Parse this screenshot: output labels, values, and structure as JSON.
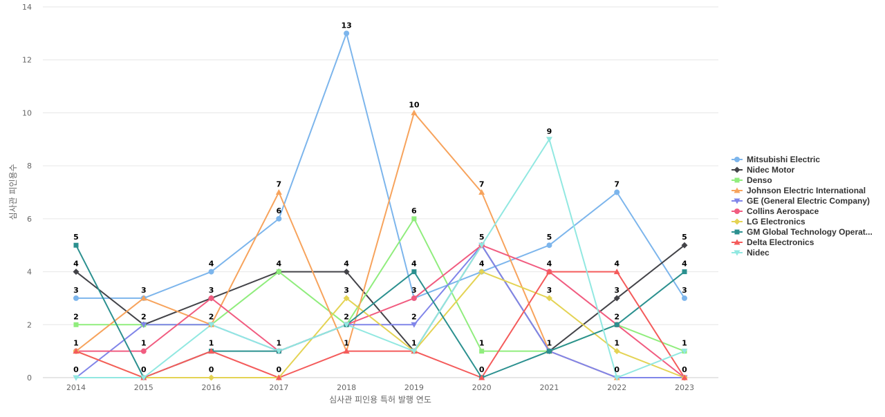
{
  "chart_data": {
    "type": "line",
    "title": "",
    "xlabel": "심사관 피인용 특허 발행 연도",
    "ylabel": "심사관 피인용수",
    "categories": [
      "2014",
      "2015",
      "2016",
      "2017",
      "2018",
      "2019",
      "2020",
      "2021",
      "2022",
      "2023"
    ],
    "ylim": [
      0,
      14
    ],
    "yticks": [
      0,
      2,
      4,
      6,
      8,
      10,
      12,
      14
    ],
    "grid": true,
    "legend_position": "right",
    "series": [
      {
        "name": "Mitsubishi Electric",
        "color": "#7cb5ec",
        "marker": "circle",
        "values": [
          3,
          3,
          4,
          6,
          13,
          3,
          4,
          5,
          7,
          3
        ]
      },
      {
        "name": "Nidec Motor",
        "color": "#434348",
        "marker": "diamond",
        "values": [
          4,
          2,
          3,
          4,
          4,
          1,
          5,
          1,
          3,
          5
        ]
      },
      {
        "name": "Denso",
        "color": "#90ed7d",
        "marker": "square",
        "values": [
          2,
          2,
          2,
          4,
          2,
          6,
          1,
          1,
          2,
          1
        ]
      },
      {
        "name": "Johnson Electric International",
        "color": "#f7a35c",
        "marker": "triangle",
        "values": [
          1,
          3,
          2,
          7,
          1,
          10,
          7,
          1,
          0,
          0
        ]
      },
      {
        "name": "GE (General Electric Company)",
        "color": "#8085e9",
        "marker": "triangle-down",
        "values": [
          0,
          2,
          2,
          1,
          2,
          2,
          5,
          1,
          0,
          0
        ]
      },
      {
        "name": "Collins Aerospace",
        "color": "#f15c80",
        "marker": "circle",
        "values": [
          1,
          1,
          3,
          1,
          2,
          3,
          5,
          4,
          2,
          0
        ]
      },
      {
        "name": "LG Electronics",
        "color": "#e4d354",
        "marker": "diamond",
        "values": [
          1,
          0,
          0,
          0,
          3,
          1,
          4,
          3,
          1,
          0
        ]
      },
      {
        "name": "GM Global Technology Operat...",
        "color": "#2b908f",
        "marker": "square",
        "values": [
          5,
          0,
          1,
          1,
          2,
          4,
          0,
          1,
          2,
          4
        ]
      },
      {
        "name": "Delta Electronics",
        "color": "#f45b5b",
        "marker": "triangle",
        "values": [
          1,
          0,
          1,
          0,
          1,
          1,
          0,
          4,
          4,
          0
        ]
      },
      {
        "name": "Nidec",
        "color": "#91e8e1",
        "marker": "triangle-down",
        "values": [
          0,
          0,
          2,
          1,
          2,
          1,
          5,
          9,
          0,
          1
        ]
      }
    ],
    "data_labels": [
      {
        "category": "2014",
        "values": [
          "5",
          "4",
          "3",
          "2",
          "1",
          "0"
        ]
      },
      {
        "category": "2015",
        "values": [
          "3",
          "2",
          "1",
          "0"
        ]
      },
      {
        "category": "2016",
        "values": [
          "4",
          "3",
          "2",
          "1",
          "0"
        ]
      },
      {
        "category": "2017",
        "values": [
          "7",
          "6",
          "4",
          "1",
          "0"
        ]
      },
      {
        "category": "2018",
        "values": [
          "13",
          "4",
          "3",
          "2",
          "1"
        ]
      },
      {
        "category": "2019",
        "values": [
          "10",
          "6",
          "4",
          "3",
          "2",
          "1"
        ]
      },
      {
        "category": "2020",
        "values": [
          "7",
          "5",
          "4",
          "1",
          "0"
        ]
      },
      {
        "category": "2021",
        "values": [
          "9",
          "5",
          "4",
          "3",
          "1"
        ]
      },
      {
        "category": "2022",
        "values": [
          "7",
          "4",
          "3",
          "2",
          "1",
          "0"
        ]
      },
      {
        "category": "2023",
        "values": [
          "5",
          "4",
          "3",
          "1",
          "0"
        ]
      }
    ]
  }
}
